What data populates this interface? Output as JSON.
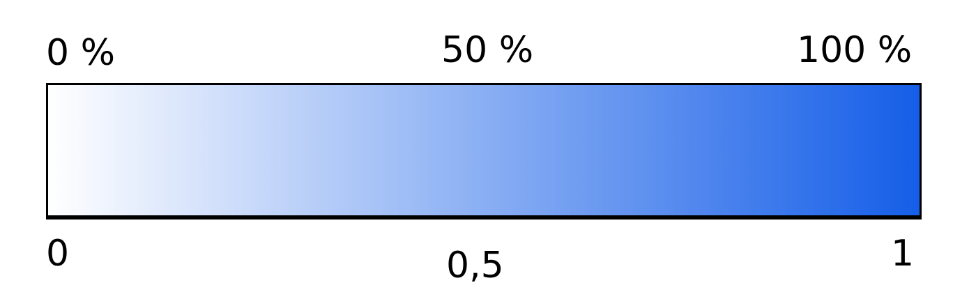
{
  "top_labels": [
    "0 %",
    "50 %",
    "100 %"
  ],
  "bottom_labels": [
    "0",
    "0,5",
    "1"
  ],
  "gradient": {
    "start_color": "#ffffff",
    "end_color": "#155ee8"
  }
}
